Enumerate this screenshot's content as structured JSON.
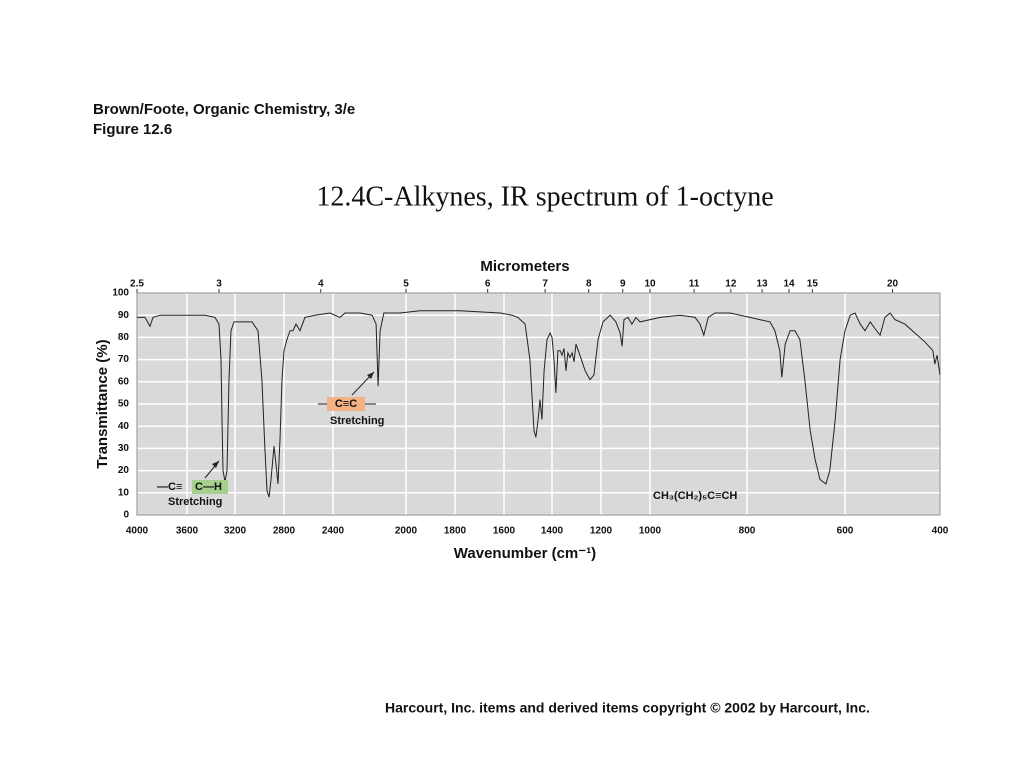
{
  "header": {
    "book": "Brown/Foote, Organic Chemistry, 3/e",
    "figure": "Figure 12.6"
  },
  "footer": "Harcourt, Inc. items and derived items copyright © 2002 by Harcourt, Inc.",
  "chart_data": {
    "type": "line",
    "title": "12.4C-Alkynes, IR spectrum of 1-octyne",
    "x_label": "Wavenumber (cm⁻¹)",
    "x2_label": "Micrometers",
    "y_label": "Transmittance (%)",
    "color": "#222222",
    "background": "#d9d9d9",
    "grid": true,
    "xlim": [
      4000,
      400
    ],
    "xticks": [
      4000,
      3600,
      3200,
      2800,
      2400,
      2000,
      1800,
      1600,
      1400,
      1200,
      1000,
      800,
      600,
      400
    ],
    "x2ticks": [
      2.5,
      3,
      4,
      5,
      6,
      7,
      8,
      9,
      10,
      11,
      12,
      13,
      14,
      15,
      20
    ],
    "ylim": [
      0,
      100
    ],
    "yticks": [
      0,
      10,
      20,
      30,
      40,
      50,
      60,
      70,
      80,
      90,
      100
    ],
    "x": [
      4000,
      3936,
      3896,
      3872,
      3816,
      3696,
      3575,
      3450,
      3367,
      3333,
      3317,
      3308,
      3300,
      3283,
      3267,
      3250,
      3233,
      3208,
      3159,
      3061,
      3012,
      2980,
      2955,
      2939,
      2922,
      2906,
      2882,
      2865,
      2849,
      2833,
      2816,
      2800,
      2776,
      2751,
      2727,
      2702,
      2669,
      2629,
      2547,
      2424,
      2362,
      2334,
      2252,
      2186,
      2164,
      2153,
      2142,
      2121,
      2033,
      1943,
      1780,
      1616,
      1567,
      1542,
      1512,
      1492,
      1475,
      1467,
      1458,
      1450,
      1442,
      1433,
      1421,
      1408,
      1400,
      1392,
      1384,
      1376,
      1367,
      1359,
      1351,
      1343,
      1335,
      1327,
      1318,
      1310,
      1302,
      1286,
      1265,
      1245,
      1229,
      1212,
      1192,
      1163,
      1139,
      1122,
      1114,
      1106,
      1090,
      1074,
      1057,
      1041,
      979,
      938,
      907,
      897,
      889,
      880,
      866,
      835,
      794,
      753,
      743,
      733,
      729,
      722,
      712,
      702,
      692,
      682,
      671,
      661,
      651,
      639,
      631,
      620,
      610,
      600,
      589,
      579,
      568,
      558,
      547,
      537,
      526,
      516,
      505,
      495,
      474,
      453,
      432,
      415,
      411,
      406,
      400
    ],
    "values": [
      89,
      89,
      85,
      89,
      90,
      90,
      90,
      90,
      89,
      86,
      70,
      43,
      20,
      15,
      20,
      61,
      83,
      87,
      87,
      87,
      83,
      61,
      29,
      11,
      8,
      16,
      31,
      23,
      14,
      34,
      61,
      74,
      79,
      83,
      83,
      86,
      83,
      89,
      90,
      91,
      89,
      91,
      91,
      90,
      86,
      58,
      83,
      91,
      91,
      92,
      92,
      91,
      90,
      89,
      86,
      70,
      38,
      35,
      43,
      52,
      43,
      65,
      79,
      82,
      80,
      70,
      55,
      74,
      74,
      72,
      75,
      65,
      73,
      71,
      73,
      69,
      77,
      72,
      65,
      61,
      63,
      79,
      87,
      90,
      87,
      82,
      76,
      88,
      89,
      86,
      89,
      87,
      89,
      90,
      89,
      86,
      81,
      89,
      91,
      91,
      89,
      87,
      83,
      74,
      62,
      77,
      83,
      83,
      79,
      61,
      38,
      25,
      16,
      14,
      20,
      43,
      70,
      83,
      90,
      91,
      86,
      83,
      87,
      84,
      81,
      89,
      91,
      88,
      86,
      82,
      78,
      74,
      68,
      72,
      63
    ],
    "annotations": [
      {
        "label": [
          "—C≡",
          "C—H"
        ],
        "note": "Stretching",
        "highlight": "#a8d08d"
      },
      {
        "label": [
          "C≡C"
        ],
        "note": "Stretching",
        "highlight": "#f4b183"
      },
      {
        "label": [
          "CH₃(CH₂)₅C≡CH"
        ]
      }
    ]
  }
}
